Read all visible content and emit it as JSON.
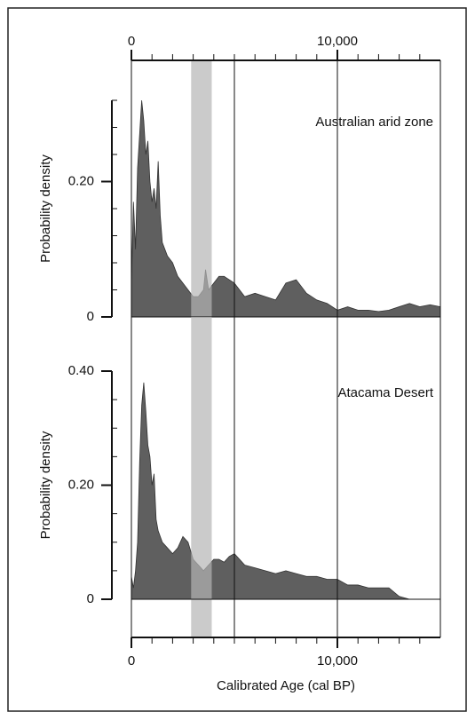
{
  "chart_data": [
    {
      "type": "area",
      "ylabel": "Probability density",
      "annotation": "Australian arid zone",
      "color": "#5f5f5f",
      "x": [
        0,
        100,
        200,
        300,
        400,
        500,
        600,
        700,
        800,
        900,
        1000,
        1100,
        1200,
        1300,
        1400,
        1500,
        1750,
        2000,
        2250,
        2500,
        2750,
        3000,
        3250,
        3500,
        3600,
        3750,
        4000,
        4250,
        4500,
        4750,
        5000,
        5500,
        6000,
        6500,
        7000,
        7500,
        8000,
        8500,
        9000,
        9500,
        10000,
        10500,
        11000,
        11500,
        12000,
        12500,
        13000,
        13500,
        14000,
        14500,
        15000
      ],
      "values": [
        0.05,
        0.17,
        0.1,
        0.22,
        0.27,
        0.32,
        0.29,
        0.24,
        0.26,
        0.2,
        0.17,
        0.19,
        0.16,
        0.23,
        0.15,
        0.11,
        0.09,
        0.08,
        0.06,
        0.05,
        0.04,
        0.03,
        0.03,
        0.04,
        0.07,
        0.04,
        0.05,
        0.06,
        0.06,
        0.055,
        0.05,
        0.03,
        0.035,
        0.03,
        0.025,
        0.05,
        0.055,
        0.035,
        0.025,
        0.02,
        0.01,
        0.015,
        0.01,
        0.01,
        0.008,
        0.01,
        0.015,
        0.02,
        0.015,
        0.018,
        0.015
      ],
      "xlim": [
        0,
        15000
      ],
      "xticks": [
        0,
        {
          "value": 10000,
          "label": "10,000"
        }
      ],
      "xminor": [
        1000,
        2000,
        3000,
        4000,
        5000,
        6000,
        7000,
        8000,
        9000,
        11000,
        12000,
        13000,
        14000
      ],
      "ylim": [
        0,
        0.32
      ],
      "yticks": [
        0,
        {
          "value": 0.2,
          "label": "0.20"
        }
      ],
      "yminor": [
        0.04,
        0.08,
        0.12,
        0.16,
        0.24,
        0.28,
        0.32
      ],
      "highlight_span": [
        2900,
        3900
      ],
      "ref_lines": [
        5000,
        10000
      ]
    },
    {
      "type": "area",
      "ylabel": "Probability density",
      "annotation": "Atacama Desert",
      "xlabel": "Calibrated Age (cal BP)",
      "color": "#5f5f5f",
      "x": [
        0,
        100,
        200,
        300,
        400,
        500,
        600,
        700,
        800,
        900,
        1000,
        1100,
        1200,
        1300,
        1500,
        1750,
        2000,
        2250,
        2500,
        2750,
        3000,
        3250,
        3500,
        3750,
        4000,
        4250,
        4500,
        4750,
        5000,
        5500,
        6000,
        6500,
        7000,
        7500,
        8000,
        8500,
        9000,
        9500,
        10000,
        10500,
        11000,
        11500,
        12000,
        12500,
        13000,
        13500,
        14000,
        15000
      ],
      "values": [
        0.04,
        0.02,
        0.05,
        0.1,
        0.24,
        0.34,
        0.38,
        0.33,
        0.27,
        0.25,
        0.2,
        0.22,
        0.14,
        0.12,
        0.1,
        0.09,
        0.08,
        0.09,
        0.11,
        0.1,
        0.07,
        0.06,
        0.05,
        0.06,
        0.07,
        0.07,
        0.065,
        0.075,
        0.08,
        0.06,
        0.055,
        0.05,
        0.045,
        0.05,
        0.045,
        0.04,
        0.04,
        0.035,
        0.035,
        0.025,
        0.025,
        0.02,
        0.02,
        0.02,
        0.005,
        0,
        0,
        0
      ],
      "xlim": [
        0,
        15000
      ],
      "xticks": [
        0,
        {
          "value": 10000,
          "label": "10,000"
        }
      ],
      "xminor": [
        1000,
        2000,
        3000,
        4000,
        5000,
        6000,
        7000,
        8000,
        9000,
        11000,
        12000,
        13000,
        14000
      ],
      "ylim": [
        0,
        0.4
      ],
      "yticks": [
        0,
        {
          "value": 0.2,
          "label": "0.20"
        },
        {
          "value": 0.4,
          "label": "0.40"
        }
      ],
      "yminor": [
        0.05,
        0.1,
        0.15,
        0.25,
        0.3,
        0.35
      ],
      "highlight_span": [
        2900,
        3900
      ],
      "ref_lines": [
        5000,
        10000
      ]
    }
  ]
}
